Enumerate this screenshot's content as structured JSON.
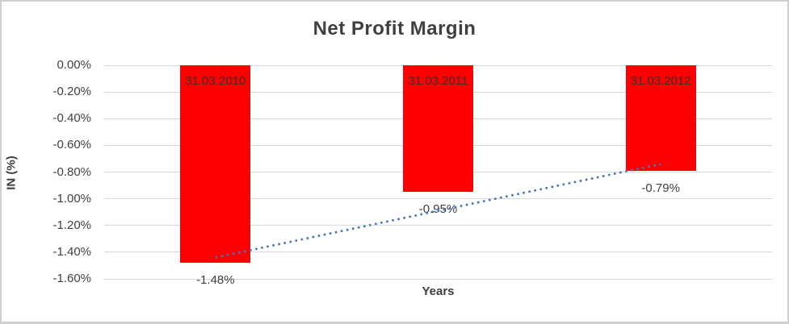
{
  "chart_data": {
    "type": "bar",
    "title": "Net Profit Margin",
    "xlabel": "Years",
    "ylabel": "IN (%)",
    "categories": [
      "31.03.2010",
      "31.03.2011",
      "31.03.2012"
    ],
    "values": [
      -1.48,
      -0.95,
      -0.79
    ],
    "data_labels": [
      "-1.48%",
      "-0.95%",
      "-0.79%"
    ],
    "y_ticks": [
      "0.00%",
      "-0.20%",
      "-0.40%",
      "-0.60%",
      "-0.80%",
      "-1.00%",
      "-1.20%",
      "-1.40%",
      "-1.60%"
    ],
    "ylim": [
      0,
      -1.6
    ],
    "grid": true,
    "legend": "none",
    "colors": {
      "bar": "#ff0000",
      "trendline": "#4472c4",
      "text": "#3f3f3f",
      "gridline": "#d9d9d9"
    },
    "trendline": {
      "style": "dotted",
      "start_category_index": 0,
      "end_category_index": 2,
      "start_value": -1.44,
      "end_value": -0.74
    }
  }
}
